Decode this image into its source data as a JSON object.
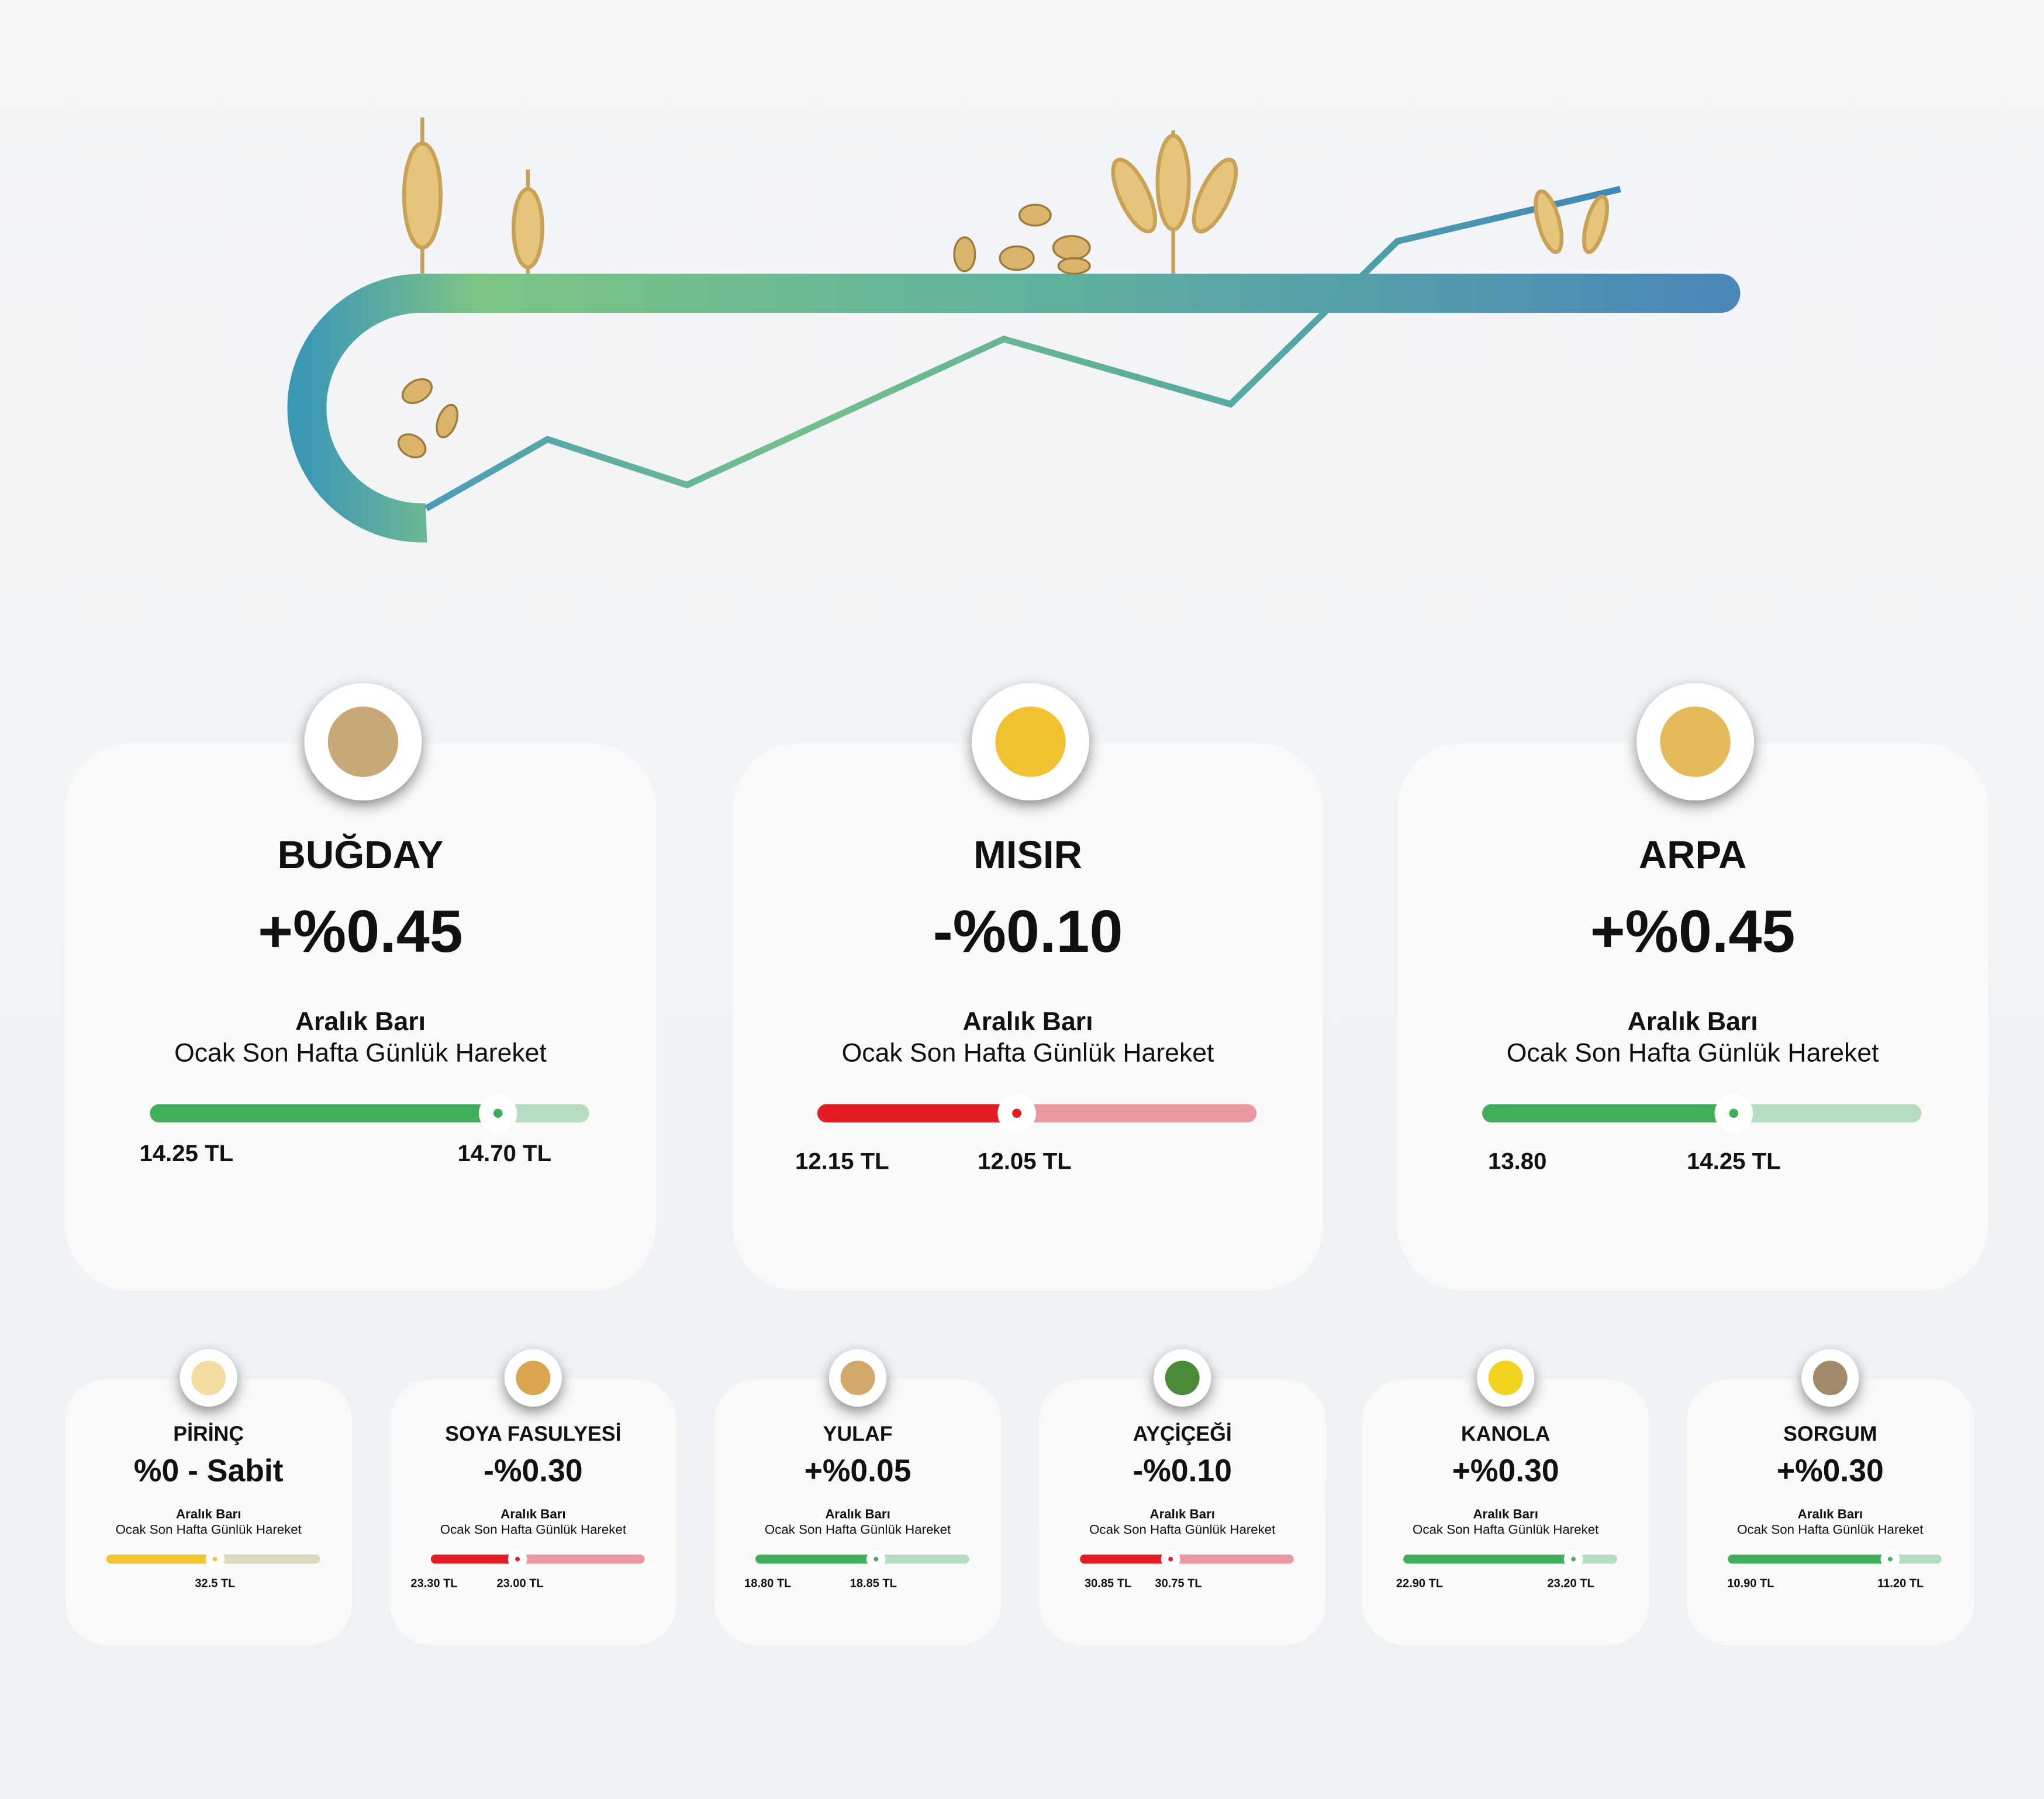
{
  "main": [
    {
      "name": "BUĞDAY",
      "change": "+%0.45",
      "range_title": "Aralık Barı",
      "range_subtitle": "Ocak Son Hafta Günlük Hareket",
      "prices": [
        "14.25 TL",
        "14.70 TL"
      ]
    },
    {
      "name": "MISIR",
      "change": "-%0.10",
      "range_title": "Aralık Barı",
      "range_subtitle": "Ocak Son Hafta Günlük Hareket",
      "prices": [
        "12.15 TL",
        "12.05 TL"
      ]
    },
    {
      "name": "ARPA",
      "change": "+%0.45",
      "range_title": "Aralık Barı",
      "range_subtitle": "Ocak Son Hafta Günlük Hareket",
      "prices": [
        "13.80",
        "14.25 TL"
      ]
    }
  ],
  "secondary": [
    {
      "name": "PİRİNÇ",
      "change": "%0 - Sabit",
      "range_title": "Aralık Barı",
      "range_subtitle": "Ocak Son Hafta Günlük Hareket",
      "prices": [
        "32.5 TL"
      ]
    },
    {
      "name": "SOYA FASULYESİ",
      "change": "-%0.30",
      "range_title": "Aralık Barı",
      "range_subtitle": "Ocak Son Hafta Günlük Hareket",
      "prices": [
        "23.30 TL",
        "23.00 TL"
      ]
    },
    {
      "name": "YULAF",
      "change": "+%0.05",
      "range_title": "Aralık Barı",
      "range_subtitle": "Ocak Son Hafta Günlük Hareket",
      "prices": [
        "18.80 TL",
        "18.85 TL"
      ]
    },
    {
      "name": "AYÇİÇEĞİ",
      "change": "-%0.10",
      "range_title": "Aralık Barı",
      "range_subtitle": "Ocak Son Hafta Günlük Hareket",
      "prices": [
        "30.85 TL",
        "30.75 TL"
      ]
    },
    {
      "name": "KANOLA",
      "change": "+%0.30",
      "range_title": "Aralık Barı",
      "range_subtitle": "Ocak Son Hafta Günlük Hareket",
      "prices": [
        "22.90 TL",
        "23.20 TL"
      ]
    },
    {
      "name": "SORGUM",
      "change": "+%0.30",
      "range_title": "Aralık Barı",
      "range_subtitle": "Ocak Son Hafta Günlük Hareket",
      "prices": [
        "10.90 TL",
        "11.20 TL"
      ]
    }
  ]
}
